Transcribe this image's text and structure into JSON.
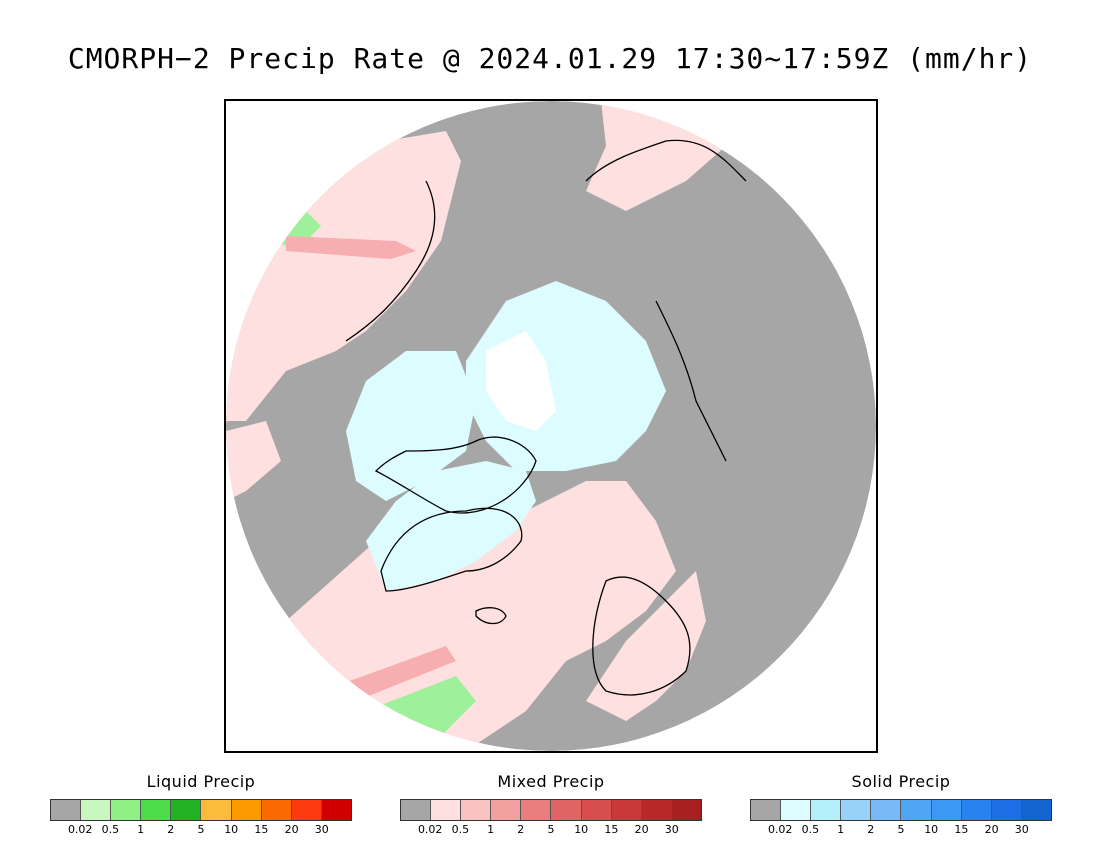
{
  "title": "CMORPH−2 Precip Rate @ 2024.01.29 17:30~17:59Z (mm/hr)",
  "map": {
    "projection": "north-polar-stereographic",
    "background_color": "#a6a6a6",
    "colors": {
      "no_precip": "#a6a6a6",
      "light_mixed": "#fde0df",
      "light_solid": "#dcfcff",
      "ocean_outside": "#ffffff",
      "coastline": "#000000",
      "liquid_green": "#9ef19a",
      "mixed_medium": "#f7aeb0"
    }
  },
  "legends": [
    {
      "id": "liquid",
      "title": "Liquid Precip",
      "colors": [
        "#a6a6a6",
        "#c8f7c0",
        "#90ef85",
        "#4cdc4c",
        "#23b223",
        "#fbbc3c",
        "#fb9a00",
        "#fb6a00",
        "#fb3a10",
        "#d10000"
      ],
      "ticks": [
        "0.02",
        "0.5",
        "1",
        "2",
        "5",
        "10",
        "15",
        "20",
        "30"
      ]
    },
    {
      "id": "mixed",
      "title": "Mixed Precip",
      "colors": [
        "#a6a6a6",
        "#fde0df",
        "#fac2c2",
        "#f3a0a0",
        "#e97e7e",
        "#e06464",
        "#d84e4e",
        "#c93838",
        "#b82828",
        "#a52020"
      ],
      "ticks": [
        "0.02",
        "0.5",
        "1",
        "2",
        "5",
        "10",
        "15",
        "20",
        "30"
      ]
    },
    {
      "id": "solid",
      "title": "Solid Precip",
      "colors": [
        "#a6a6a6",
        "#dcfcff",
        "#b4effc",
        "#96d2fa",
        "#78b9fa",
        "#50a5f5",
        "#3c97f5",
        "#2882f0",
        "#1e6ee6",
        "#1464d2"
      ],
      "ticks": [
        "0.02",
        "0.5",
        "1",
        "2",
        "5",
        "10",
        "15",
        "20",
        "30"
      ]
    }
  ]
}
